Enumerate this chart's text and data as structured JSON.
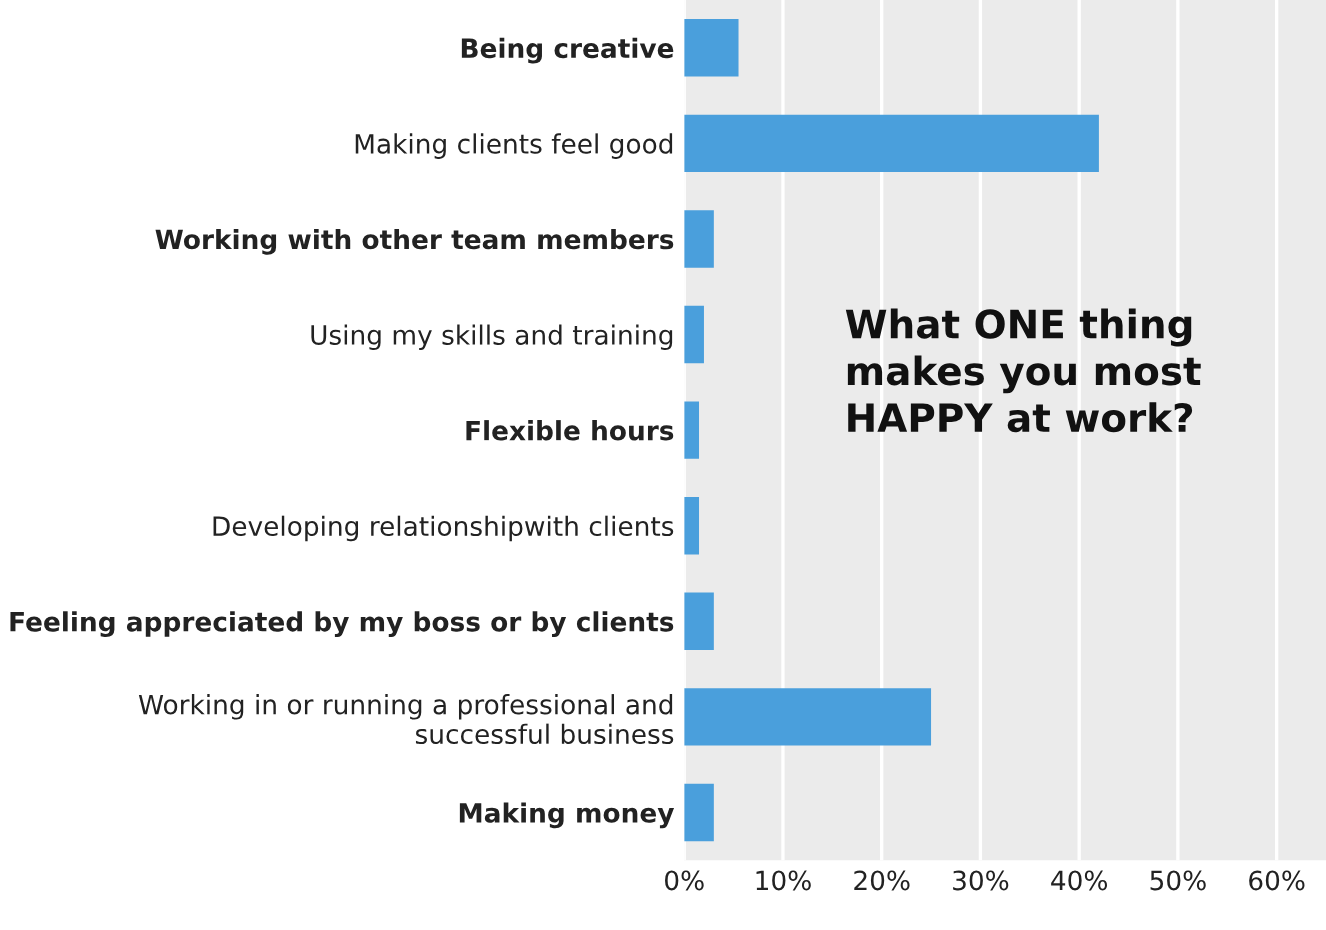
{
  "chart_data": {
    "type": "bar",
    "orientation": "horizontal",
    "title": "What ONE thing\nmakes you most\nHAPPY at work?",
    "categories": [
      "Being creative",
      "Making clients feel good",
      "Working with other team members",
      "Using my skills and training",
      "Flexible hours",
      "Developing relationshipwith clients",
      "Feeling appreciated by my boss or by clients",
      "Working in or running a professional and\nsuccessful business",
      "Making money"
    ],
    "values": [
      5.5,
      42,
      3,
      2,
      1.5,
      1.5,
      3,
      25,
      3
    ],
    "color": "#4a9fdc",
    "xlim": [
      0,
      65
    ],
    "xticks": [
      {
        "value": 0,
        "label": "0%"
      },
      {
        "value": 10,
        "label": "10%"
      },
      {
        "value": 20,
        "label": "20%"
      },
      {
        "value": 30,
        "label": "30%"
      },
      {
        "value": 40,
        "label": "40%"
      },
      {
        "value": 50,
        "label": "50%"
      },
      {
        "value": 60,
        "label": "60%"
      }
    ],
    "grid": "x"
  }
}
